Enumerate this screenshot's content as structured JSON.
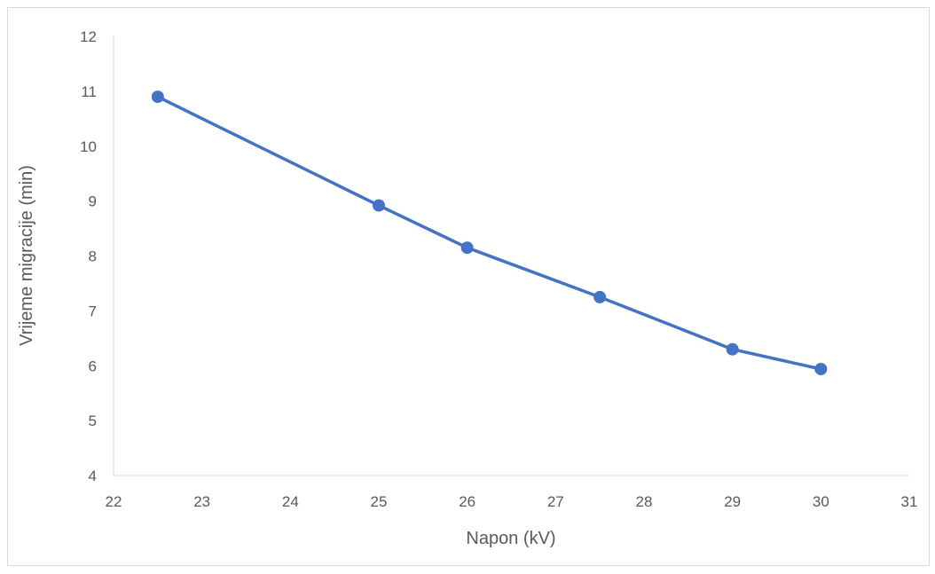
{
  "chart_data": {
    "type": "line",
    "title": "",
    "xlabel": "Napon (kV)",
    "ylabel": "Vrijeme migracije (min)",
    "xlim": [
      22,
      31
    ],
    "ylim": [
      4,
      12
    ],
    "xticks": [
      22,
      23,
      24,
      25,
      26,
      27,
      28,
      29,
      30,
      31
    ],
    "yticks": [
      4,
      5,
      6,
      7,
      8,
      9,
      10,
      11,
      12
    ],
    "grid": false,
    "legend": "none",
    "series": [
      {
        "color": "#4472c4",
        "marker": "circle",
        "x": [
          22.5,
          25,
          26,
          27.5,
          29,
          30
        ],
        "y": [
          10.9,
          8.92,
          8.15,
          7.25,
          6.3,
          5.94
        ]
      }
    ]
  }
}
